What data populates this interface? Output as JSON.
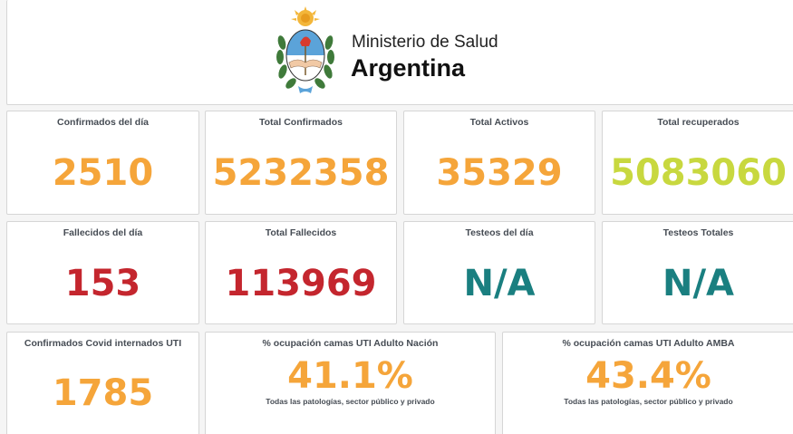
{
  "header": {
    "org_line": "Ministerio de Salud",
    "country_line": "Argentina",
    "logo_icon": "coat-of-arms-icon"
  },
  "colors": {
    "orange": "#f5a53a",
    "yellow_green": "#c8d83f",
    "red": "#c4262e",
    "teal": "#1a7f80"
  },
  "stats": {
    "confirmados_dia": {
      "label": "Confirmados del día",
      "value": "2510"
    },
    "total_confirmados": {
      "label": "Total Confirmados",
      "value": "5232358"
    },
    "total_activos": {
      "label": "Total Activos",
      "value": "35329"
    },
    "total_recuperados": {
      "label": "Total recuperados",
      "value": "5083060"
    },
    "fallecidos_dia": {
      "label": "Fallecidos del día",
      "value": "153"
    },
    "total_fallecidos": {
      "label": "Total Fallecidos",
      "value": "113969"
    },
    "testeos_dia": {
      "label": "Testeos del día",
      "value": "N/A"
    },
    "testeos_totales": {
      "label": "Testeos Totales",
      "value": "N/A"
    },
    "internados_uti": {
      "label": "Confirmados Covid internados UTI",
      "value": "1785"
    },
    "ocupacion_nacion": {
      "label": "% ocupación camas UTI Adulto Nación",
      "value": "41.1%",
      "subtitle": "Todas las patologías, sector público y privado"
    },
    "ocupacion_amba": {
      "label": "% ocupación camas UTI Adulto AMBA",
      "value": "43.4%",
      "subtitle": "Todas las patologías, sector público y privado"
    }
  }
}
